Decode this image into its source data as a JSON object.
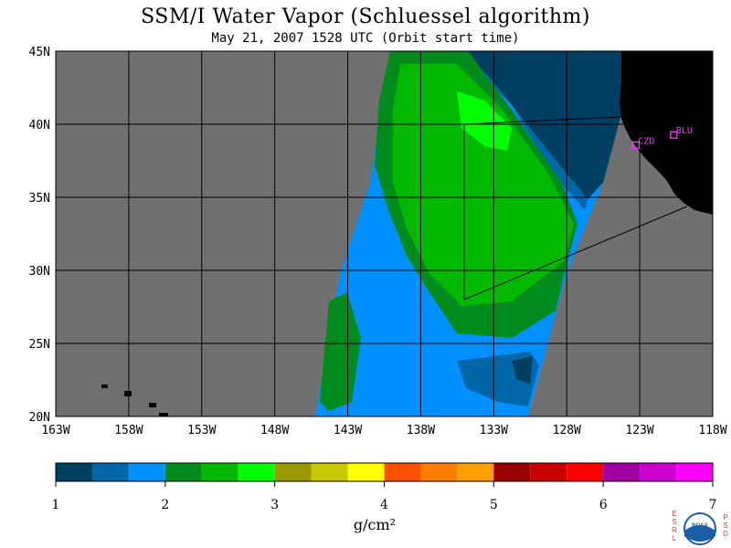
{
  "title": "SSM/I Water Vapor (Schluessel algorithm)",
  "subtitle": "May 21, 2007  1528 UTC  (Orbit start time)",
  "lon_labels": [
    "163W",
    "158W",
    "153W",
    "148W",
    "143W",
    "138W",
    "133W",
    "128W",
    "123W",
    "118W"
  ],
  "lat_labels": [
    "45N",
    "40N",
    "35N",
    "30N",
    "25N",
    "20N"
  ],
  "stations": [
    {
      "id": "CZD",
      "lon": -123.3,
      "lat": 38.6
    },
    {
      "id": "BLU",
      "lon": -120.7,
      "lat": 39.3
    }
  ],
  "colorbar": {
    "colors": [
      "#003e62",
      "#0067a8",
      "#0090ff",
      "#008b1c",
      "#00b900",
      "#00ff00",
      "#9a9a00",
      "#c8c800",
      "#ffff00",
      "#ff5000",
      "#ff7e00",
      "#ffa000",
      "#9b0000",
      "#c80000",
      "#ff0000",
      "#a000a0",
      "#cc00cc",
      "#ff00ff"
    ],
    "tick_labels": [
      "1",
      "2",
      "3",
      "4",
      "5",
      "6",
      "7"
    ],
    "unit": "g/cm²"
  },
  "colors": {
    "no_data": "#707070",
    "land": "#000000",
    "station": "#ff33ff",
    "grid": "#000000"
  },
  "logo": {
    "left_text": "ESRL",
    "right_text": "PSD",
    "center_text": "NOAA"
  },
  "chart_data": {
    "type": "heatmap",
    "title": "SSM/I Water Vapor (Schluessel algorithm)",
    "subtitle": "May 21, 2007  1528 UTC  (Orbit start time)",
    "xlim": [
      -163,
      -118
    ],
    "ylim": [
      20,
      45
    ],
    "grid": true,
    "colorbar_range": [
      1,
      7
    ],
    "colorbar_unit": "g/cm²"
  }
}
